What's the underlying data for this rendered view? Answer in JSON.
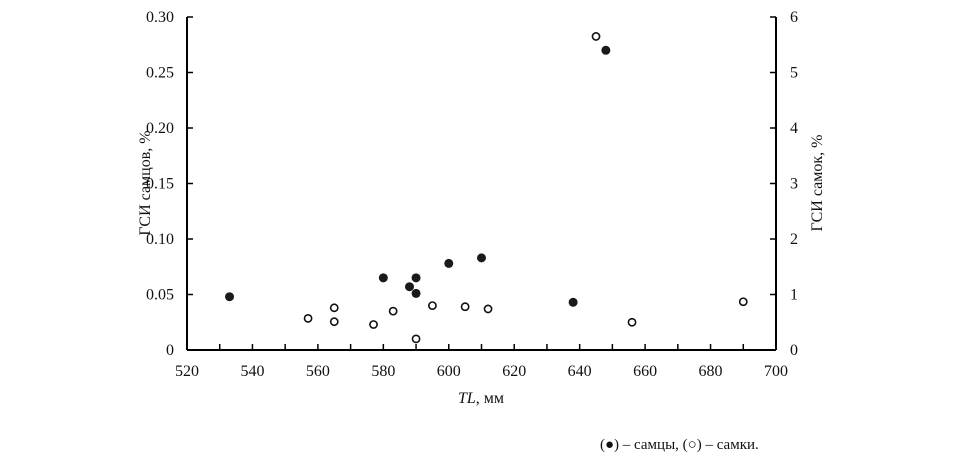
{
  "chart_data": {
    "type": "scatter",
    "xlabel_italic": "TL",
    "xlabel_rest": ", мм",
    "ylabel_left": "ГСИ самцов, %",
    "ylabel_right": "ГСИ самок, %",
    "xlim": [
      520,
      700
    ],
    "xticks": [
      520,
      540,
      560,
      580,
      600,
      620,
      640,
      660,
      680,
      700
    ],
    "ylim_left": [
      0,
      0.3
    ],
    "yticks_left": [
      "0",
      "0.05",
      "0.10",
      "0.15",
      "0.20",
      "0.25",
      "0.30"
    ],
    "ylim_right": [
      0,
      6
    ],
    "yticks_right": [
      "0",
      "1",
      "2",
      "3",
      "4",
      "5",
      "6"
    ],
    "series": [
      {
        "name": "самцы",
        "marker": "filled",
        "axis": "left",
        "points": [
          [
            533,
            0.048
          ],
          [
            580,
            0.065
          ],
          [
            588,
            0.057
          ],
          [
            590,
            0.065
          ],
          [
            590,
            0.051
          ],
          [
            600,
            0.078
          ],
          [
            610,
            0.083
          ],
          [
            638,
            0.043
          ],
          [
            648,
            0.27
          ]
        ]
      },
      {
        "name": "самки",
        "marker": "open",
        "axis": "right",
        "points": [
          [
            557,
            0.57
          ],
          [
            565,
            0.76
          ],
          [
            565,
            0.51
          ],
          [
            577,
            0.46
          ],
          [
            583,
            0.7
          ],
          [
            590,
            0.2
          ],
          [
            595,
            0.8
          ],
          [
            605,
            0.78
          ],
          [
            612,
            0.74
          ],
          [
            645,
            5.65
          ],
          [
            656,
            0.5
          ],
          [
            690,
            0.87
          ]
        ]
      }
    ],
    "legend": "(●) – самцы, (○) – самки."
  }
}
